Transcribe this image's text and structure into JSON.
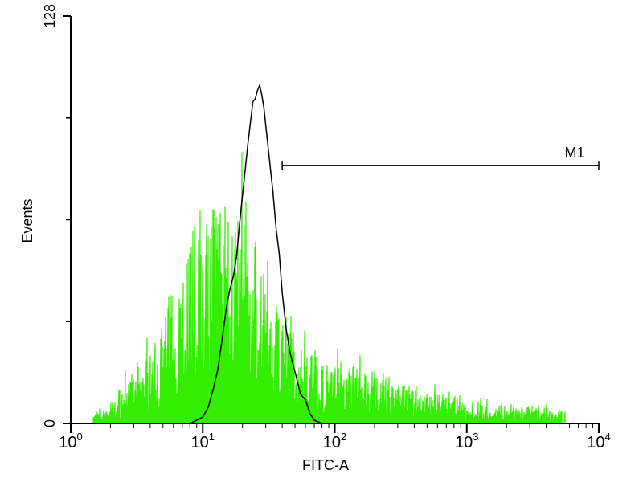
{
  "chart_data": {
    "type": "histogram",
    "xlabel": "FITC-A",
    "ylabel": "Events",
    "xscale": "log",
    "xlim": [
      1,
      10000
    ],
    "ylim": [
      0,
      128
    ],
    "x_ticks": [
      {
        "base": "10",
        "exp": "0"
      },
      {
        "base": "10",
        "exp": "1"
      },
      {
        "base": "10",
        "exp": "2"
      },
      {
        "base": "10",
        "exp": "3"
      },
      {
        "base": "10",
        "exp": "4"
      }
    ],
    "y_ticks": [
      "0",
      "128"
    ],
    "series": [
      {
        "color": "#33ee00",
        "style": "noisy-filled",
        "points": [
          [
            1.5,
            2
          ],
          [
            2,
            4
          ],
          [
            3,
            10
          ],
          [
            4,
            14
          ],
          [
            5,
            20
          ],
          [
            6,
            28
          ],
          [
            7,
            34
          ],
          [
            8,
            38
          ],
          [
            9,
            40
          ],
          [
            10,
            42
          ],
          [
            12,
            45
          ],
          [
            14,
            44
          ],
          [
            16,
            42
          ],
          [
            18,
            40
          ],
          [
            20,
            38
          ],
          [
            22,
            37
          ],
          [
            25,
            35
          ],
          [
            28,
            33
          ],
          [
            32,
            30
          ],
          [
            36,
            27
          ],
          [
            40,
            22
          ],
          [
            45,
            19
          ],
          [
            50,
            17
          ],
          [
            60,
            14
          ],
          [
            70,
            13
          ],
          [
            80,
            12
          ],
          [
            100,
            12
          ],
          [
            120,
            11
          ],
          [
            150,
            11
          ],
          [
            200,
            10
          ],
          [
            300,
            8
          ],
          [
            400,
            7
          ],
          [
            600,
            6
          ],
          [
            800,
            5
          ],
          [
            1000,
            4
          ],
          [
            1500,
            4
          ],
          [
            2000,
            3
          ],
          [
            3000,
            3
          ],
          [
            4000,
            3
          ],
          [
            5500,
            2
          ]
        ]
      },
      {
        "color": "#000000",
        "style": "line",
        "points": [
          [
            8,
            0
          ],
          [
            9,
            1
          ],
          [
            10,
            2
          ],
          [
            11,
            5
          ],
          [
            12,
            10
          ],
          [
            13,
            18
          ],
          [
            14,
            26
          ],
          [
            15,
            34
          ],
          [
            16,
            40
          ],
          [
            17,
            46
          ],
          [
            18,
            54
          ],
          [
            19,
            62
          ],
          [
            20,
            72
          ],
          [
            21,
            80
          ],
          [
            22,
            88
          ],
          [
            23,
            95
          ],
          [
            24,
            100
          ],
          [
            25,
            104
          ],
          [
            26,
            106
          ],
          [
            27,
            108
          ],
          [
            28,
            104
          ],
          [
            29,
            100
          ],
          [
            30,
            94
          ],
          [
            32,
            84
          ],
          [
            34,
            72
          ],
          [
            36,
            62
          ],
          [
            38,
            52
          ],
          [
            40,
            42
          ],
          [
            43,
            30
          ],
          [
            46,
            22
          ],
          [
            50,
            16
          ],
          [
            55,
            10
          ],
          [
            60,
            6
          ],
          [
            65,
            3
          ],
          [
            70,
            1
          ],
          [
            80,
            0
          ]
        ]
      }
    ],
    "markers": [
      {
        "label": "M1",
        "x_start": 40,
        "x_end": 10000,
        "y": 81
      }
    ]
  }
}
